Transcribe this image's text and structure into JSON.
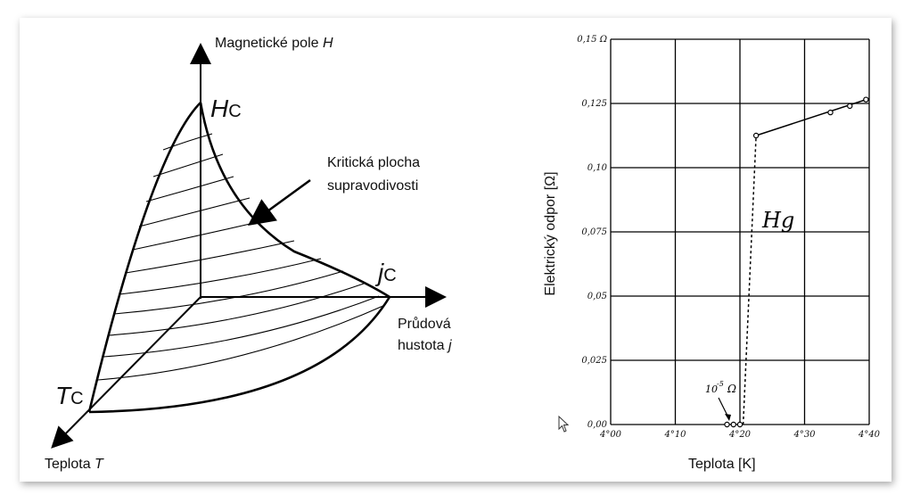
{
  "diagram": {
    "y_axis_label": "Magnetické pole",
    "y_axis_symbol": "H",
    "x_axis_label_line1": "Průdová",
    "x_axis_label_line2": "hustota",
    "x_axis_symbol": "j",
    "z_axis_label": "Teplota",
    "z_axis_symbol": "T",
    "hc_symbol": "H",
    "jc_symbol": "j",
    "tc_symbol": "T",
    "critical_sub": "C",
    "surface_label_line1": "Kritická plocha",
    "surface_label_line2": "supravodivosti"
  },
  "chart_data": {
    "type": "line",
    "xlabel": "Teplota [K]",
    "ylabel": "Elektrický odpor [Ω]",
    "x_ticks": [
      "4°00",
      "4°10",
      "4°20",
      "4°30",
      "4°40"
    ],
    "y_ticks": [
      "0,00",
      "0,025",
      "0,05",
      "0,075",
      "0,10",
      "0,125",
      "0,15 Ω"
    ],
    "xlim": [
      4.0,
      4.4
    ],
    "ylim": [
      0.0,
      0.15
    ],
    "grid": true,
    "annotations": {
      "series_label": "Hg",
      "small_resistance": "10",
      "small_resistance_exp": "-5",
      "small_resistance_unit": "Ω"
    },
    "series": [
      {
        "name": "Hg",
        "points": [
          [
            4.18,
            0.0
          ],
          [
            4.19,
            0.0
          ],
          [
            4.2,
            0.0
          ],
          [
            4.225,
            0.1125
          ],
          [
            4.34,
            0.1215
          ],
          [
            4.37,
            0.124
          ],
          [
            4.395,
            0.1265
          ]
        ],
        "dashed_segment": [
          [
            4.205,
            0.0
          ],
          [
            4.225,
            0.1125
          ]
        ]
      }
    ]
  }
}
